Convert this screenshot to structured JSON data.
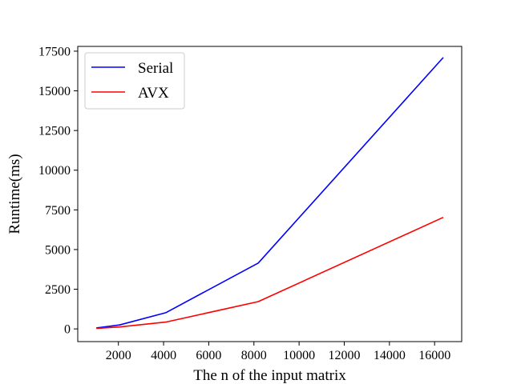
{
  "chart_data": {
    "type": "line",
    "xlabel": "The n of the input matrix",
    "ylabel": "Runtime(ms)",
    "xlim": [
      200,
      17200
    ],
    "ylim": [
      -800,
      17800
    ],
    "xticks": [
      2000,
      4000,
      6000,
      8000,
      10000,
      12000,
      14000,
      16000
    ],
    "yticks": [
      0,
      2500,
      5000,
      7500,
      10000,
      12500,
      15000,
      17500
    ],
    "grid": false,
    "legend_position": "top-left",
    "series": [
      {
        "name": "Serial",
        "color": "#0000ff",
        "x": [
          1024,
          2048,
          4096,
          8192,
          16384
        ],
        "y": [
          60,
          250,
          1020,
          4150,
          17100
        ]
      },
      {
        "name": "AVX",
        "color": "#ff0000",
        "x": [
          1024,
          2048,
          4096,
          8192,
          16384
        ],
        "y": [
          30,
          120,
          430,
          1720,
          7030
        ]
      }
    ]
  }
}
